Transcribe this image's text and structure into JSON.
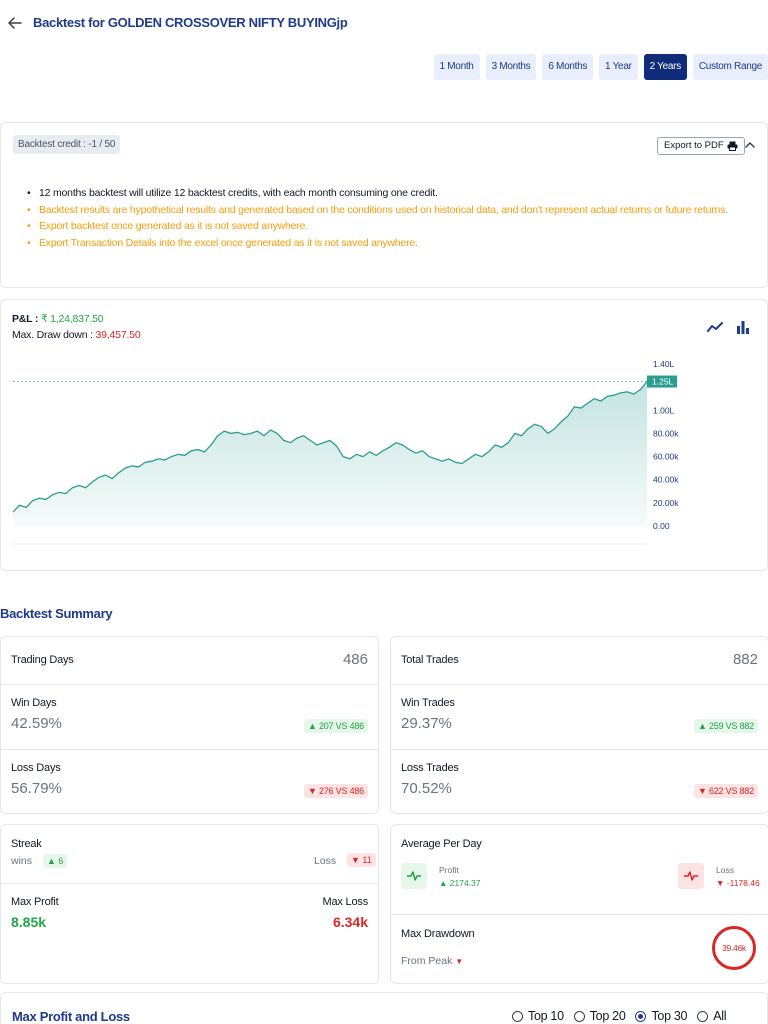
{
  "header": {
    "title": "Backtest for GOLDEN CROSSOVER NIFTY BUYINGjp"
  },
  "range_buttons": [
    {
      "label": "1 Month",
      "active": false
    },
    {
      "label": "3 Months",
      "active": false
    },
    {
      "label": "6 Months",
      "active": false
    },
    {
      "label": "1 Year",
      "active": false
    },
    {
      "label": "2 Years",
      "active": true
    },
    {
      "label": "Custom Range",
      "active": false
    }
  ],
  "info": {
    "credit": "Backtest credit : -1 / 50",
    "export_label": "Export to PDF",
    "notes": [
      {
        "text": "12 months backtest will utilize 12 backtest credits, with each month consuming one credit.",
        "tone": "black"
      },
      {
        "text": "Backtest results are hypothetical results and generated based on the conditions used on historical data, and don't represent actual returns or future returns.",
        "tone": "orange"
      },
      {
        "text": "Export backtest once generated as it is not saved anywhere.",
        "tone": "orange"
      },
      {
        "text": "Export Transaction Details into the excel once generated as it is not saved anywhere.",
        "tone": "orange"
      }
    ]
  },
  "pnl": {
    "pl_label": "P&L :",
    "pl_value": "₹ 1,24,837.50",
    "dd_label": "Max. Draw down :",
    "dd_value": "39,457.50"
  },
  "chart_data": {
    "type": "area",
    "y_ticks": [
      "0.00",
      "20.00k",
      "40.00k",
      "60.00k",
      "80.00k",
      "1.00L",
      "1.25L",
      "1.40L"
    ],
    "y_tick_values": [
      0,
      20000,
      40000,
      60000,
      80000,
      100000,
      125000,
      140000
    ],
    "ylim": [
      0,
      140000
    ],
    "current_label": "1.25L",
    "current_value": 124837.5,
    "series": [
      {
        "values": [
          12000,
          18000,
          16000,
          22000,
          24000,
          23000,
          27000,
          29000,
          28000,
          33000,
          35000,
          33000,
          38000,
          42000,
          44000,
          41000,
          46000,
          50000,
          52000,
          51000,
          55000,
          56000,
          58000,
          57000,
          60000,
          62000,
          61000,
          65000,
          66000,
          64000,
          70000,
          78000,
          82000,
          80000,
          81000,
          79000,
          80000,
          82000,
          78000,
          83000,
          80000,
          74000,
          72000,
          76000,
          78000,
          74000,
          70000,
          72000,
          74000,
          69000,
          60000,
          58000,
          62000,
          60000,
          64000,
          61000,
          65000,
          68000,
          72000,
          70000,
          66000,
          63000,
          65000,
          60000,
          58000,
          56000,
          58000,
          55000,
          54000,
          58000,
          62000,
          60000,
          64000,
          70000,
          68000,
          72000,
          80000,
          78000,
          84000,
          88000,
          86000,
          80000,
          84000,
          90000,
          95000,
          103000,
          102000,
          106000,
          110000,
          108000,
          112000,
          113000,
          115000,
          116000,
          114000,
          118000,
          124837.5
        ]
      }
    ]
  },
  "summary": {
    "title": "Backtest Summary",
    "trading_days": {
      "label": "Trading Days",
      "value": "486"
    },
    "win_days": {
      "label": "Win Days",
      "pct": "42.59%",
      "badge": "▲ 207 VS 486"
    },
    "loss_days": {
      "label": "Loss Days",
      "pct": "56.79%",
      "badge": "▼ 276 VS 486"
    },
    "total_trades": {
      "label": "Total Trades",
      "value": "882"
    },
    "win_trades": {
      "label": "Win Trades",
      "pct": "29.37%",
      "badge": "▲ 259 VS 882"
    },
    "loss_trades": {
      "label": "Loss Trades",
      "pct": "70.52%",
      "badge": "▼ 622 VS 882"
    },
    "streak": {
      "label": "Streak",
      "wins_label": "wins",
      "wins_value": "▲ 6",
      "loss_label": "Loss",
      "loss_value": "▼ 11"
    },
    "max_profit": {
      "label": "Max Profit",
      "value": "8.85k"
    },
    "max_loss": {
      "label": "Max Loss",
      "value": "6.34k"
    },
    "avg_per_day": {
      "label": "Average Per Day",
      "profit_label": "Profit",
      "profit_value": "▲ 2174.37",
      "loss_label": "Loss",
      "loss_value": "▼ -1178.46"
    },
    "max_drawdown": {
      "label": "Max Drawdown",
      "from_peak": "From Peak",
      "value": "39.46k"
    }
  },
  "bottom": {
    "title": "Max Profit and Loss",
    "options": [
      {
        "label": "Top 10",
        "checked": false
      },
      {
        "label": "Top 20",
        "checked": false
      },
      {
        "label": "Top 30",
        "checked": true
      },
      {
        "label": "All",
        "checked": false
      }
    ]
  },
  "colors": {
    "accent": "#1e3a8a",
    "active": "#0f2b7a",
    "green": "#22a447",
    "red": "#dc2626",
    "orange": "#f59e0b",
    "teal": "#2a9d8f"
  }
}
